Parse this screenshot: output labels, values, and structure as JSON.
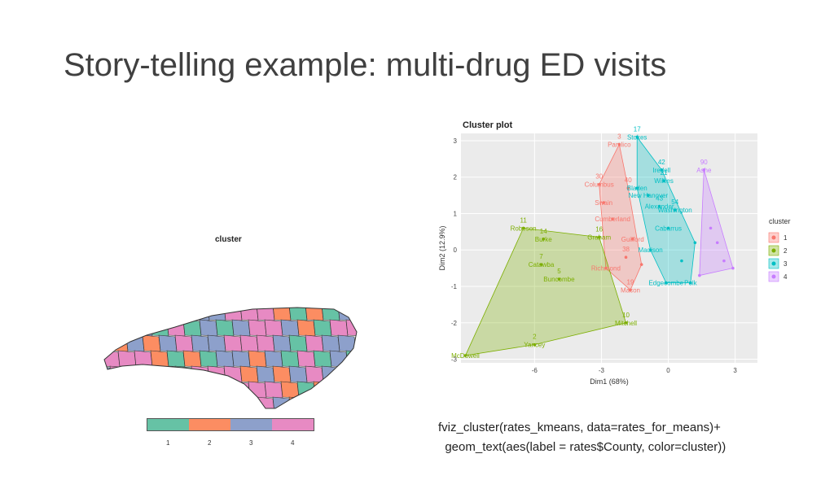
{
  "slide": {
    "title": "Story-telling example: multi-drug ED visits",
    "code_line1": "fviz_cluster(rates_kmeans, data=rates_for_means)+",
    "code_line2": "  geom_text(aes(label = rates$County, color=cluster))"
  },
  "map": {
    "title": "cluster",
    "legend": {
      "labels": [
        "1",
        "2",
        "3",
        "4"
      ],
      "colors": [
        "#66c2a5",
        "#fc8d62",
        "#8da0cb",
        "#e78ac3"
      ]
    }
  },
  "chart_data": {
    "type": "scatter",
    "title": "Cluster plot",
    "xlabel": "Dim1 (68%)",
    "ylabel": "Dim2 (12.9%)",
    "xlim": [
      -9.3,
      4.0
    ],
    "ylim": [
      -3.1,
      3.2
    ],
    "xticks": [
      -6,
      -3,
      0,
      3
    ],
    "yticks": [
      -3,
      -2,
      -1,
      0,
      1,
      2,
      3
    ],
    "legend_title": "cluster",
    "legend_position": "right",
    "series": [
      {
        "name": "1",
        "color": "#f8766d",
        "points": [
          {
            "x": -2.2,
            "y": 2.9,
            "id": "3",
            "label": "Pamlico"
          },
          {
            "x": -3.1,
            "y": 1.8,
            "id": "30",
            "label": "Columbus"
          },
          {
            "x": -1.8,
            "y": 1.7,
            "id": "40",
            "label": ""
          },
          {
            "x": -2.9,
            "y": 1.3,
            "id": "",
            "label": "Swain"
          },
          {
            "x": -2.5,
            "y": 0.85,
            "id": "",
            "label": "Cumberland"
          },
          {
            "x": -1.6,
            "y": 0.3,
            "id": "",
            "label": "Guilford"
          },
          {
            "x": -1.9,
            "y": -0.2,
            "id": "38",
            "label": ""
          },
          {
            "x": -2.8,
            "y": -0.5,
            "id": "",
            "label": "Richmond"
          },
          {
            "x": -1.7,
            "y": -1.1,
            "id": "19",
            "label": "Macon"
          },
          {
            "x": -1.2,
            "y": -0.4,
            "id": "",
            "label": ""
          }
        ]
      },
      {
        "name": "2",
        "color": "#7cae00",
        "points": [
          {
            "x": -6.5,
            "y": 0.6,
            "id": "11",
            "label": "Robeson"
          },
          {
            "x": -5.6,
            "y": 0.3,
            "id": "14",
            "label": "Burke"
          },
          {
            "x": -5.7,
            "y": -0.4,
            "id": "7",
            "label": "Catawba"
          },
          {
            "x": -4.9,
            "y": -0.8,
            "id": "5",
            "label": "Buncombe"
          },
          {
            "x": -3.1,
            "y": 0.35,
            "id": "16",
            "label": "Graham"
          },
          {
            "x": -9.1,
            "y": -2.9,
            "id": "",
            "label": "McDowell"
          },
          {
            "x": -6.0,
            "y": -2.6,
            "id": "2",
            "label": "Yancey"
          },
          {
            "x": -1.9,
            "y": -2.0,
            "id": "10",
            "label": "Mitchell"
          }
        ]
      },
      {
        "name": "3",
        "color": "#00bfc4",
        "points": [
          {
            "x": -1.4,
            "y": 3.1,
            "id": "17",
            "label": "Stokes"
          },
          {
            "x": -0.3,
            "y": 2.2,
            "id": "42",
            "label": "Iredell"
          },
          {
            "x": -0.2,
            "y": 1.9,
            "id": "21",
            "label": "Wilkes"
          },
          {
            "x": -1.4,
            "y": 1.7,
            "id": "",
            "label": "Bladen"
          },
          {
            "x": -0.9,
            "y": 1.5,
            "id": "",
            "label": "New Hanover"
          },
          {
            "x": 0.3,
            "y": 1.1,
            "id": "54",
            "label": "Washington"
          },
          {
            "x": -0.4,
            "y": 1.2,
            "id": "43",
            "label": "Alexander"
          },
          {
            "x": 0.0,
            "y": 0.6,
            "id": "",
            "label": "Cabarrus"
          },
          {
            "x": -0.8,
            "y": 0.0,
            "id": "",
            "label": "Madison"
          },
          {
            "x": 1.0,
            "y": -0.9,
            "id": "",
            "label": "Polk"
          },
          {
            "x": -0.1,
            "y": -0.9,
            "id": "",
            "label": "Edgecombe"
          },
          {
            "x": 0.6,
            "y": -0.3,
            "id": "",
            "label": ""
          },
          {
            "x": 1.2,
            "y": 0.2,
            "id": "",
            "label": ""
          }
        ]
      },
      {
        "name": "4",
        "color": "#c77cff",
        "points": [
          {
            "x": 1.6,
            "y": 2.2,
            "id": "90",
            "label": "Ashe"
          },
          {
            "x": 1.9,
            "y": 0.6,
            "id": "",
            "label": ""
          },
          {
            "x": 2.2,
            "y": 0.2,
            "id": "",
            "label": ""
          },
          {
            "x": 2.9,
            "y": -0.5,
            "id": "",
            "label": ""
          },
          {
            "x": 1.4,
            "y": -0.7,
            "id": "",
            "label": ""
          },
          {
            "x": 2.5,
            "y": -0.3,
            "id": "",
            "label": ""
          }
        ]
      }
    ]
  }
}
